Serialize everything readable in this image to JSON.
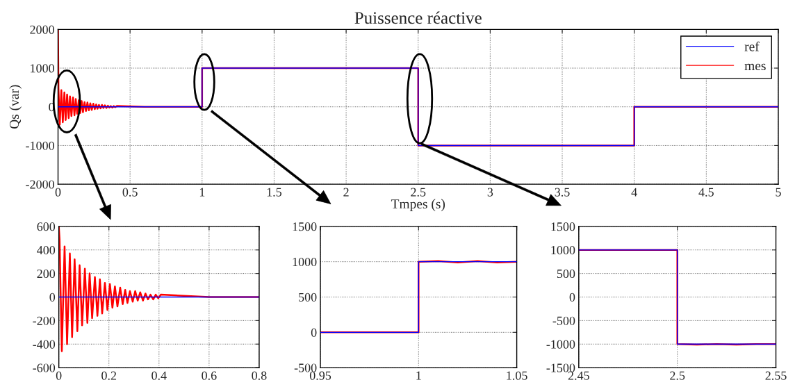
{
  "chart_data": [
    {
      "type": "line",
      "title": "Puissence réactive",
      "xlabel": "Tmpes (s)",
      "ylabel": "Qs (var)",
      "xlim": [
        0,
        5
      ],
      "ylim": [
        -2000,
        2000
      ],
      "xticks": [
        0,
        0.5,
        1,
        1.5,
        2,
        2.5,
        3,
        3.5,
        4,
        4.5,
        5
      ],
      "yticks": [
        -2000,
        -1000,
        0,
        1000,
        2000
      ],
      "grid": true,
      "legend": "top right",
      "series": [
        {
          "name": "ref",
          "color": "#0000ff",
          "x": [
            0,
            1,
            1,
            2.5,
            2.5,
            4,
            4,
            5
          ],
          "values": [
            0,
            0,
            1000,
            1000,
            -1000,
            -1000,
            0,
            0
          ]
        },
        {
          "name": "mes",
          "color": "#ff0000",
          "x": [
            0,
            0.003,
            0.012,
            0.023,
            0.033,
            0.044,
            0.053,
            0.063,
            0.074,
            0.083,
            0.093,
            0.104,
            0.114,
            0.123,
            0.133,
            0.144,
            0.154,
            0.164,
            0.173,
            0.184,
            0.194,
            0.204,
            0.214,
            0.224,
            0.234,
            0.245,
            0.255,
            0.265,
            0.274,
            0.284,
            0.295,
            0.305,
            0.315,
            0.325,
            0.336,
            0.346,
            0.356,
            0.366,
            0.377,
            0.387,
            0.397,
            0.407,
            0.6,
            1,
            1,
            2.5,
            2.5,
            4,
            4,
            5
          ],
          "values": [
            2000,
            490,
            -460,
            430,
            -400,
            370,
            -340,
            320,
            -290,
            270,
            -240,
            240,
            -220,
            200,
            -180,
            170,
            -160,
            150,
            -140,
            120,
            -110,
            110,
            -90,
            90,
            -80,
            80,
            -60,
            60,
            -50,
            50,
            -40,
            50,
            -30,
            40,
            -30,
            30,
            -20,
            20,
            -20,
            20,
            -10,
            20,
            0,
            0,
            1000,
            1000,
            -1000,
            -1000,
            0,
            0
          ]
        }
      ]
    },
    {
      "type": "line",
      "xlim": [
        0,
        0.8
      ],
      "ylim": [
        -600,
        600
      ],
      "xticks": [
        0,
        0.2,
        0.4,
        0.6,
        0.8
      ],
      "yticks": [
        -600,
        -400,
        -200,
        0,
        200,
        400,
        600
      ],
      "grid": true,
      "series": [
        {
          "color": "#0000ff",
          "x": [
            0,
            0.8
          ],
          "values": [
            0,
            0
          ]
        },
        {
          "color": "#ff0000",
          "x": [
            0,
            0.003,
            0.012,
            0.023,
            0.033,
            0.044,
            0.053,
            0.063,
            0.074,
            0.083,
            0.093,
            0.104,
            0.114,
            0.123,
            0.133,
            0.144,
            0.154,
            0.164,
            0.173,
            0.184,
            0.194,
            0.204,
            0.214,
            0.224,
            0.234,
            0.245,
            0.255,
            0.265,
            0.274,
            0.284,
            0.295,
            0.305,
            0.315,
            0.325,
            0.336,
            0.346,
            0.356,
            0.366,
            0.377,
            0.387,
            0.397,
            0.407,
            0.6,
            0.8
          ],
          "values": [
            600,
            490,
            -460,
            430,
            -400,
            370,
            -340,
            320,
            -290,
            270,
            -240,
            240,
            -220,
            200,
            -180,
            170,
            -160,
            150,
            -140,
            120,
            -110,
            110,
            -90,
            90,
            -80,
            80,
            -60,
            60,
            -50,
            50,
            -40,
            50,
            -30,
            40,
            -30,
            30,
            -20,
            20,
            -20,
            20,
            -10,
            20,
            0,
            0
          ]
        }
      ]
    },
    {
      "type": "line",
      "xlim": [
        0.95,
        1.05
      ],
      "ylim": [
        -500,
        1500
      ],
      "xticks": [
        0.95,
        1,
        1.05
      ],
      "yticks": [
        -500,
        0,
        500,
        1000,
        1500
      ],
      "grid": true,
      "series": [
        {
          "color": "#0000ff",
          "x": [
            0.95,
            1,
            1,
            1.05
          ],
          "values": [
            0,
            0,
            1000,
            1000
          ]
        },
        {
          "color": "#ff0000",
          "x": [
            0.95,
            1,
            1,
            1.01,
            1.02,
            1.03,
            1.04,
            1.05
          ],
          "values": [
            0,
            0,
            1000,
            1010,
            990,
            1010,
            990,
            1000
          ]
        }
      ]
    },
    {
      "type": "line",
      "xlim": [
        2.45,
        2.55
      ],
      "ylim": [
        -1500,
        1500
      ],
      "xticks": [
        2.45,
        2.5,
        2.55
      ],
      "yticks": [
        -1500,
        -1000,
        -500,
        0,
        500,
        1000,
        1500
      ],
      "grid": true,
      "series": [
        {
          "color": "#0000ff",
          "x": [
            2.45,
            2.5,
            2.5,
            2.55
          ],
          "values": [
            1000,
            1000,
            -1000,
            -1000
          ]
        },
        {
          "color": "#ff0000",
          "x": [
            2.45,
            2.5,
            2.5,
            2.51,
            2.52,
            2.53,
            2.54,
            2.55
          ],
          "values": [
            1000,
            1000,
            -1000,
            -1010,
            -1000,
            -1010,
            -1000,
            -1000
          ]
        }
      ]
    }
  ]
}
